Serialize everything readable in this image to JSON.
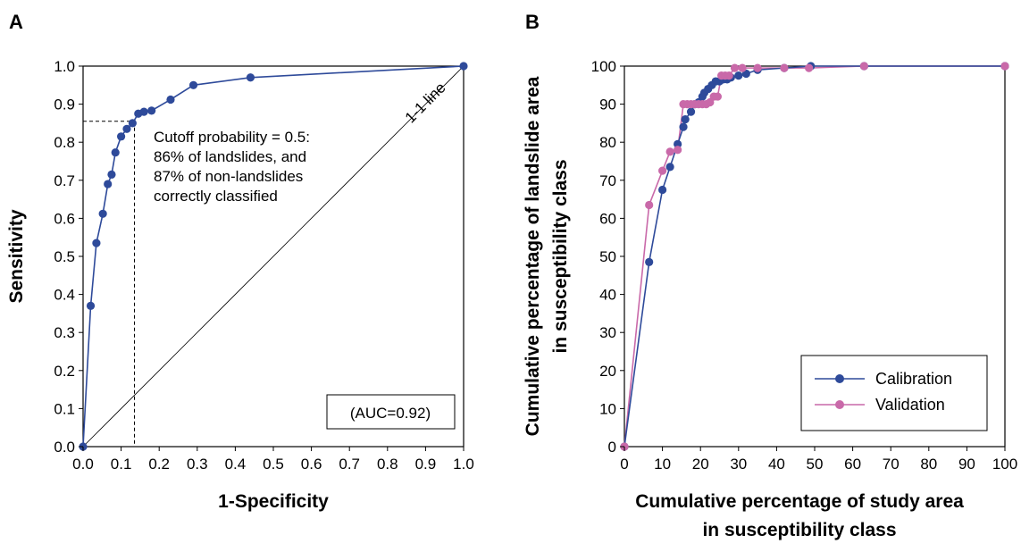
{
  "colors": {
    "calibration": "#2e4a9a",
    "validation": "#c969a9",
    "axis": "#000000"
  },
  "chart_data": [
    {
      "panel": "A",
      "type": "line",
      "title": "",
      "xlabel": "1-Specificity",
      "ylabel": "Sensitivity",
      "xlim": [
        0,
        1
      ],
      "ylim": [
        0,
        1
      ],
      "xticks": [
        "0.0",
        "0.1",
        "0.2",
        "0.3",
        "0.4",
        "0.5",
        "0.6",
        "0.7",
        "0.8",
        "0.9",
        "1.0"
      ],
      "yticks": [
        "0.0",
        "0.1",
        "0.2",
        "0.3",
        "0.4",
        "0.5",
        "0.6",
        "0.7",
        "0.8",
        "0.9",
        "1.0"
      ],
      "grid": false,
      "series": [
        {
          "x": [
            0.0,
            0.02,
            0.035,
            0.052,
            0.065,
            0.075,
            0.085,
            0.1,
            0.115,
            0.13,
            0.145,
            0.16,
            0.18,
            0.23,
            0.29,
            0.44,
            1.0
          ],
          "y": [
            0.0,
            0.37,
            0.535,
            0.612,
            0.69,
            0.715,
            0.773,
            0.815,
            0.835,
            0.85,
            0.875,
            0.88,
            0.883,
            0.912,
            0.95,
            0.97,
            1.0
          ]
        }
      ],
      "reference_line": {
        "label": "1-1 line",
        "x": [
          0,
          1
        ],
        "y": [
          0,
          1
        ]
      },
      "cutoff": {
        "x": 0.135,
        "y": 0.855
      },
      "annotation": [
        "Cutoff probability = 0.5:",
        "86% of landslides, and",
        "87% of non-landslides",
        "correctly classified"
      ],
      "auc_label": "(AUC=0.92)"
    },
    {
      "panel": "B",
      "type": "line",
      "title": "",
      "xlabel": [
        "Cumulative percentage of study area",
        "in susceptibility class"
      ],
      "ylabel": [
        "Cumulative percentage of landslide area",
        "in susceptibility class"
      ],
      "xlim": [
        0,
        100
      ],
      "ylim": [
        0,
        100
      ],
      "xticks": [
        "0",
        "10",
        "20",
        "30",
        "40",
        "50",
        "60",
        "70",
        "80",
        "90",
        "100"
      ],
      "yticks": [
        "0",
        "10",
        "20",
        "30",
        "40",
        "50",
        "60",
        "70",
        "80",
        "90",
        "100"
      ],
      "grid": false,
      "legend_position": "bottom-right",
      "series": [
        {
          "name": "Calibration",
          "x": [
            0,
            6.5,
            10,
            12,
            14,
            15.5,
            16,
            17.5,
            18.5,
            19.5,
            20.5,
            21,
            22,
            23,
            24,
            25,
            26,
            27,
            28,
            30,
            32,
            35,
            42,
            49,
            63,
            100
          ],
          "y": [
            0,
            48.5,
            67.5,
            73.5,
            79.5,
            84,
            86,
            88,
            90,
            90.5,
            92,
            93,
            94,
            95,
            96,
            96,
            96.5,
            96.5,
            97,
            97.5,
            98,
            99,
            99.5,
            100,
            100,
            100
          ]
        },
        {
          "name": "Validation",
          "x": [
            0,
            6.5,
            10,
            12,
            14,
            15.5,
            16.5,
            17.5,
            18.5,
            19.5,
            20.5,
            21.5,
            22.5,
            23.5,
            24.5,
            25.5,
            26.5,
            27.5,
            29,
            31,
            35,
            42,
            48.5,
            63,
            100
          ],
          "y": [
            0,
            63.5,
            72.5,
            77.5,
            78,
            90,
            90,
            90,
            90,
            90,
            90,
            90,
            90.5,
            92,
            92,
            97.5,
            97.5,
            97.5,
            99.5,
            99.5,
            99.5,
            99.5,
            99.5,
            100,
            100
          ]
        }
      ]
    }
  ]
}
